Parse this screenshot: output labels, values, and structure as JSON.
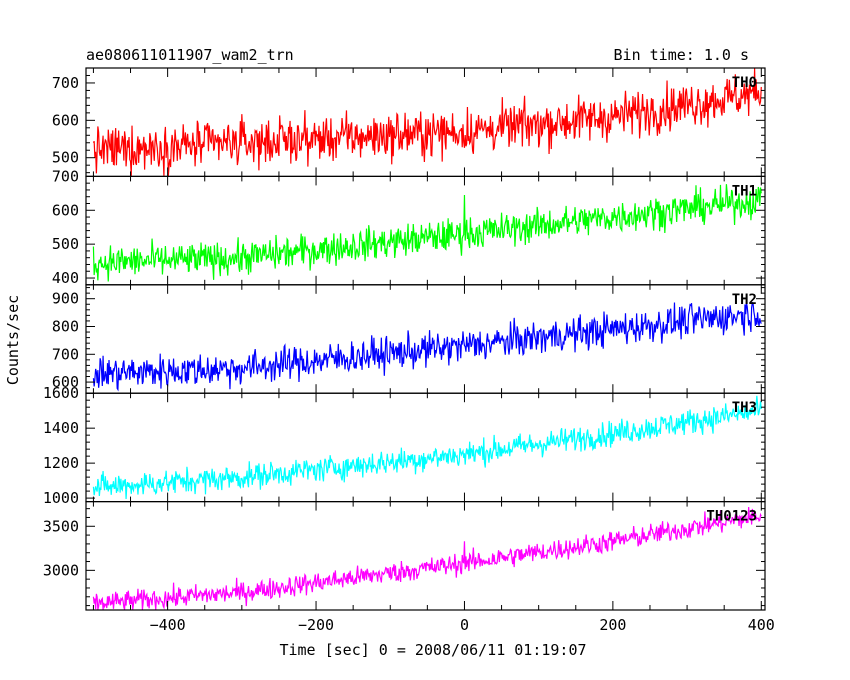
{
  "header": {
    "title": "ae080611011907_wam2_trn",
    "bin_time": "Bin time: 1.0 s"
  },
  "chart_data": {
    "type": "line",
    "xlabel": "Time [sec] 0 = 2008/06/11 01:19:07",
    "ylabel": "Counts/sec",
    "xlim": [
      -510,
      405
    ],
    "xticks": [
      -400,
      -200,
      0,
      200,
      400
    ],
    "x_start": -500,
    "x_end": 400,
    "x_step": 1,
    "grid": false,
    "panels": [
      {
        "name": "TH0",
        "color": "#ff0000",
        "ylim": [
          450,
          740
        ],
        "yticks": [
          500,
          600,
          700
        ],
        "trend": [
          [
            -500,
            520
          ],
          [
            -300,
            540
          ],
          [
            0,
            570
          ],
          [
            200,
            610
          ],
          [
            400,
            675
          ]
        ],
        "noise": 30,
        "spikes": []
      },
      {
        "name": "TH1",
        "color": "#00ff00",
        "ylim": [
          380,
          700
        ],
        "yticks": [
          400,
          500,
          600,
          700
        ],
        "trend": [
          [
            -500,
            445
          ],
          [
            -300,
            460
          ],
          [
            0,
            530
          ],
          [
            200,
            580
          ],
          [
            400,
            630
          ]
        ],
        "noise": 24,
        "spikes": [
          [
            0,
            645
          ]
        ]
      },
      {
        "name": "TH2",
        "color": "#0000ff",
        "ylim": [
          560,
          950
        ],
        "yticks": [
          600,
          700,
          800,
          900
        ],
        "trend": [
          [
            -500,
            630
          ],
          [
            -300,
            650
          ],
          [
            0,
            730
          ],
          [
            200,
            790
          ],
          [
            400,
            850
          ]
        ],
        "noise": 30,
        "spikes": []
      },
      {
        "name": "TH3",
        "color": "#00ffff",
        "ylim": [
          980,
          1600
        ],
        "yticks": [
          1000,
          1200,
          1400,
          1600
        ],
        "trend": [
          [
            -500,
            1060
          ],
          [
            -300,
            1120
          ],
          [
            0,
            1250
          ],
          [
            200,
            1370
          ],
          [
            400,
            1500
          ]
        ],
        "noise": 36,
        "spikes": []
      },
      {
        "name": "TH0123",
        "color": "#ff00ff",
        "ylim": [
          2550,
          3780
        ],
        "yticks": [
          3000,
          3500
        ],
        "trend": [
          [
            -500,
            2620
          ],
          [
            -300,
            2750
          ],
          [
            0,
            3080
          ],
          [
            200,
            3330
          ],
          [
            400,
            3620
          ]
        ],
        "noise": 60,
        "spikes": [
          [
            0,
            3330
          ]
        ]
      }
    ]
  }
}
